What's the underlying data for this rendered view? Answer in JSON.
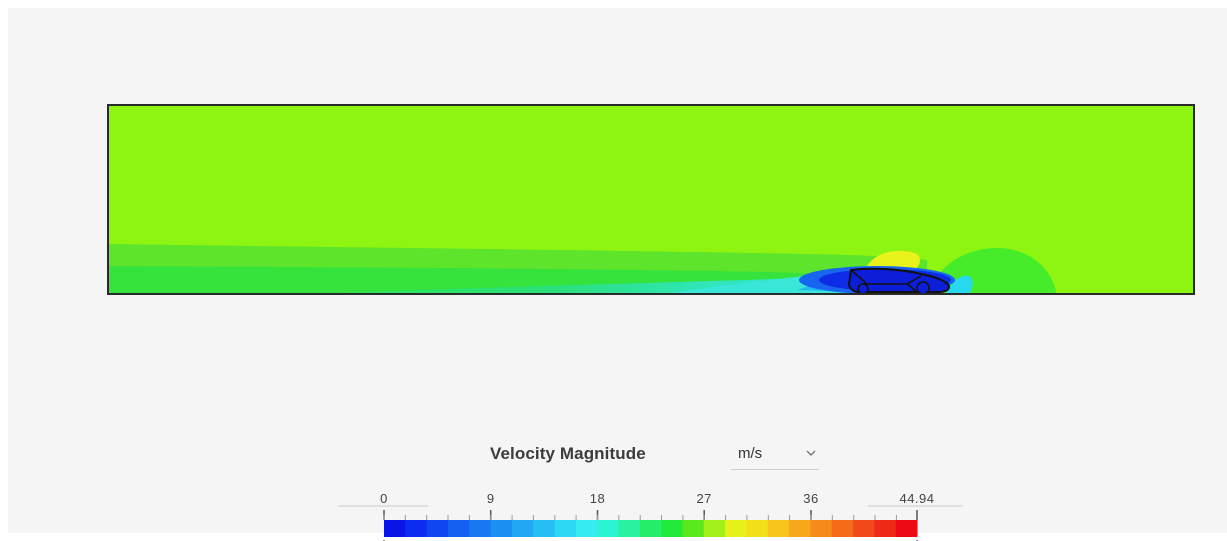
{
  "legend": {
    "title": "Velocity Magnitude",
    "unit": "m/s",
    "unit_dropdown_icon": "chevron-down-icon",
    "min": 0,
    "max": 44.94,
    "ticks": [
      "0",
      "9",
      "18",
      "27",
      "36",
      "44.94"
    ],
    "color_steps": [
      "#0a14e6",
      "#0c2cf0",
      "#1046f2",
      "#1460f2",
      "#1878f2",
      "#1c90f2",
      "#22a8f2",
      "#26c0f4",
      "#2cd8f4",
      "#36ecf2",
      "#2cf4d2",
      "#28f2a0",
      "#24ee6a",
      "#22ea3a",
      "#5aea1c",
      "#a4ee1a",
      "#e6f21a",
      "#f4e01a",
      "#f6c41a",
      "#f6a81a",
      "#f68a1a",
      "#f46c1a",
      "#f24a1a",
      "#f02818",
      "#ee0a14"
    ]
  },
  "simulation": {
    "field": "Velocity Magnitude",
    "free_stream_color": "#8ef512"
  }
}
